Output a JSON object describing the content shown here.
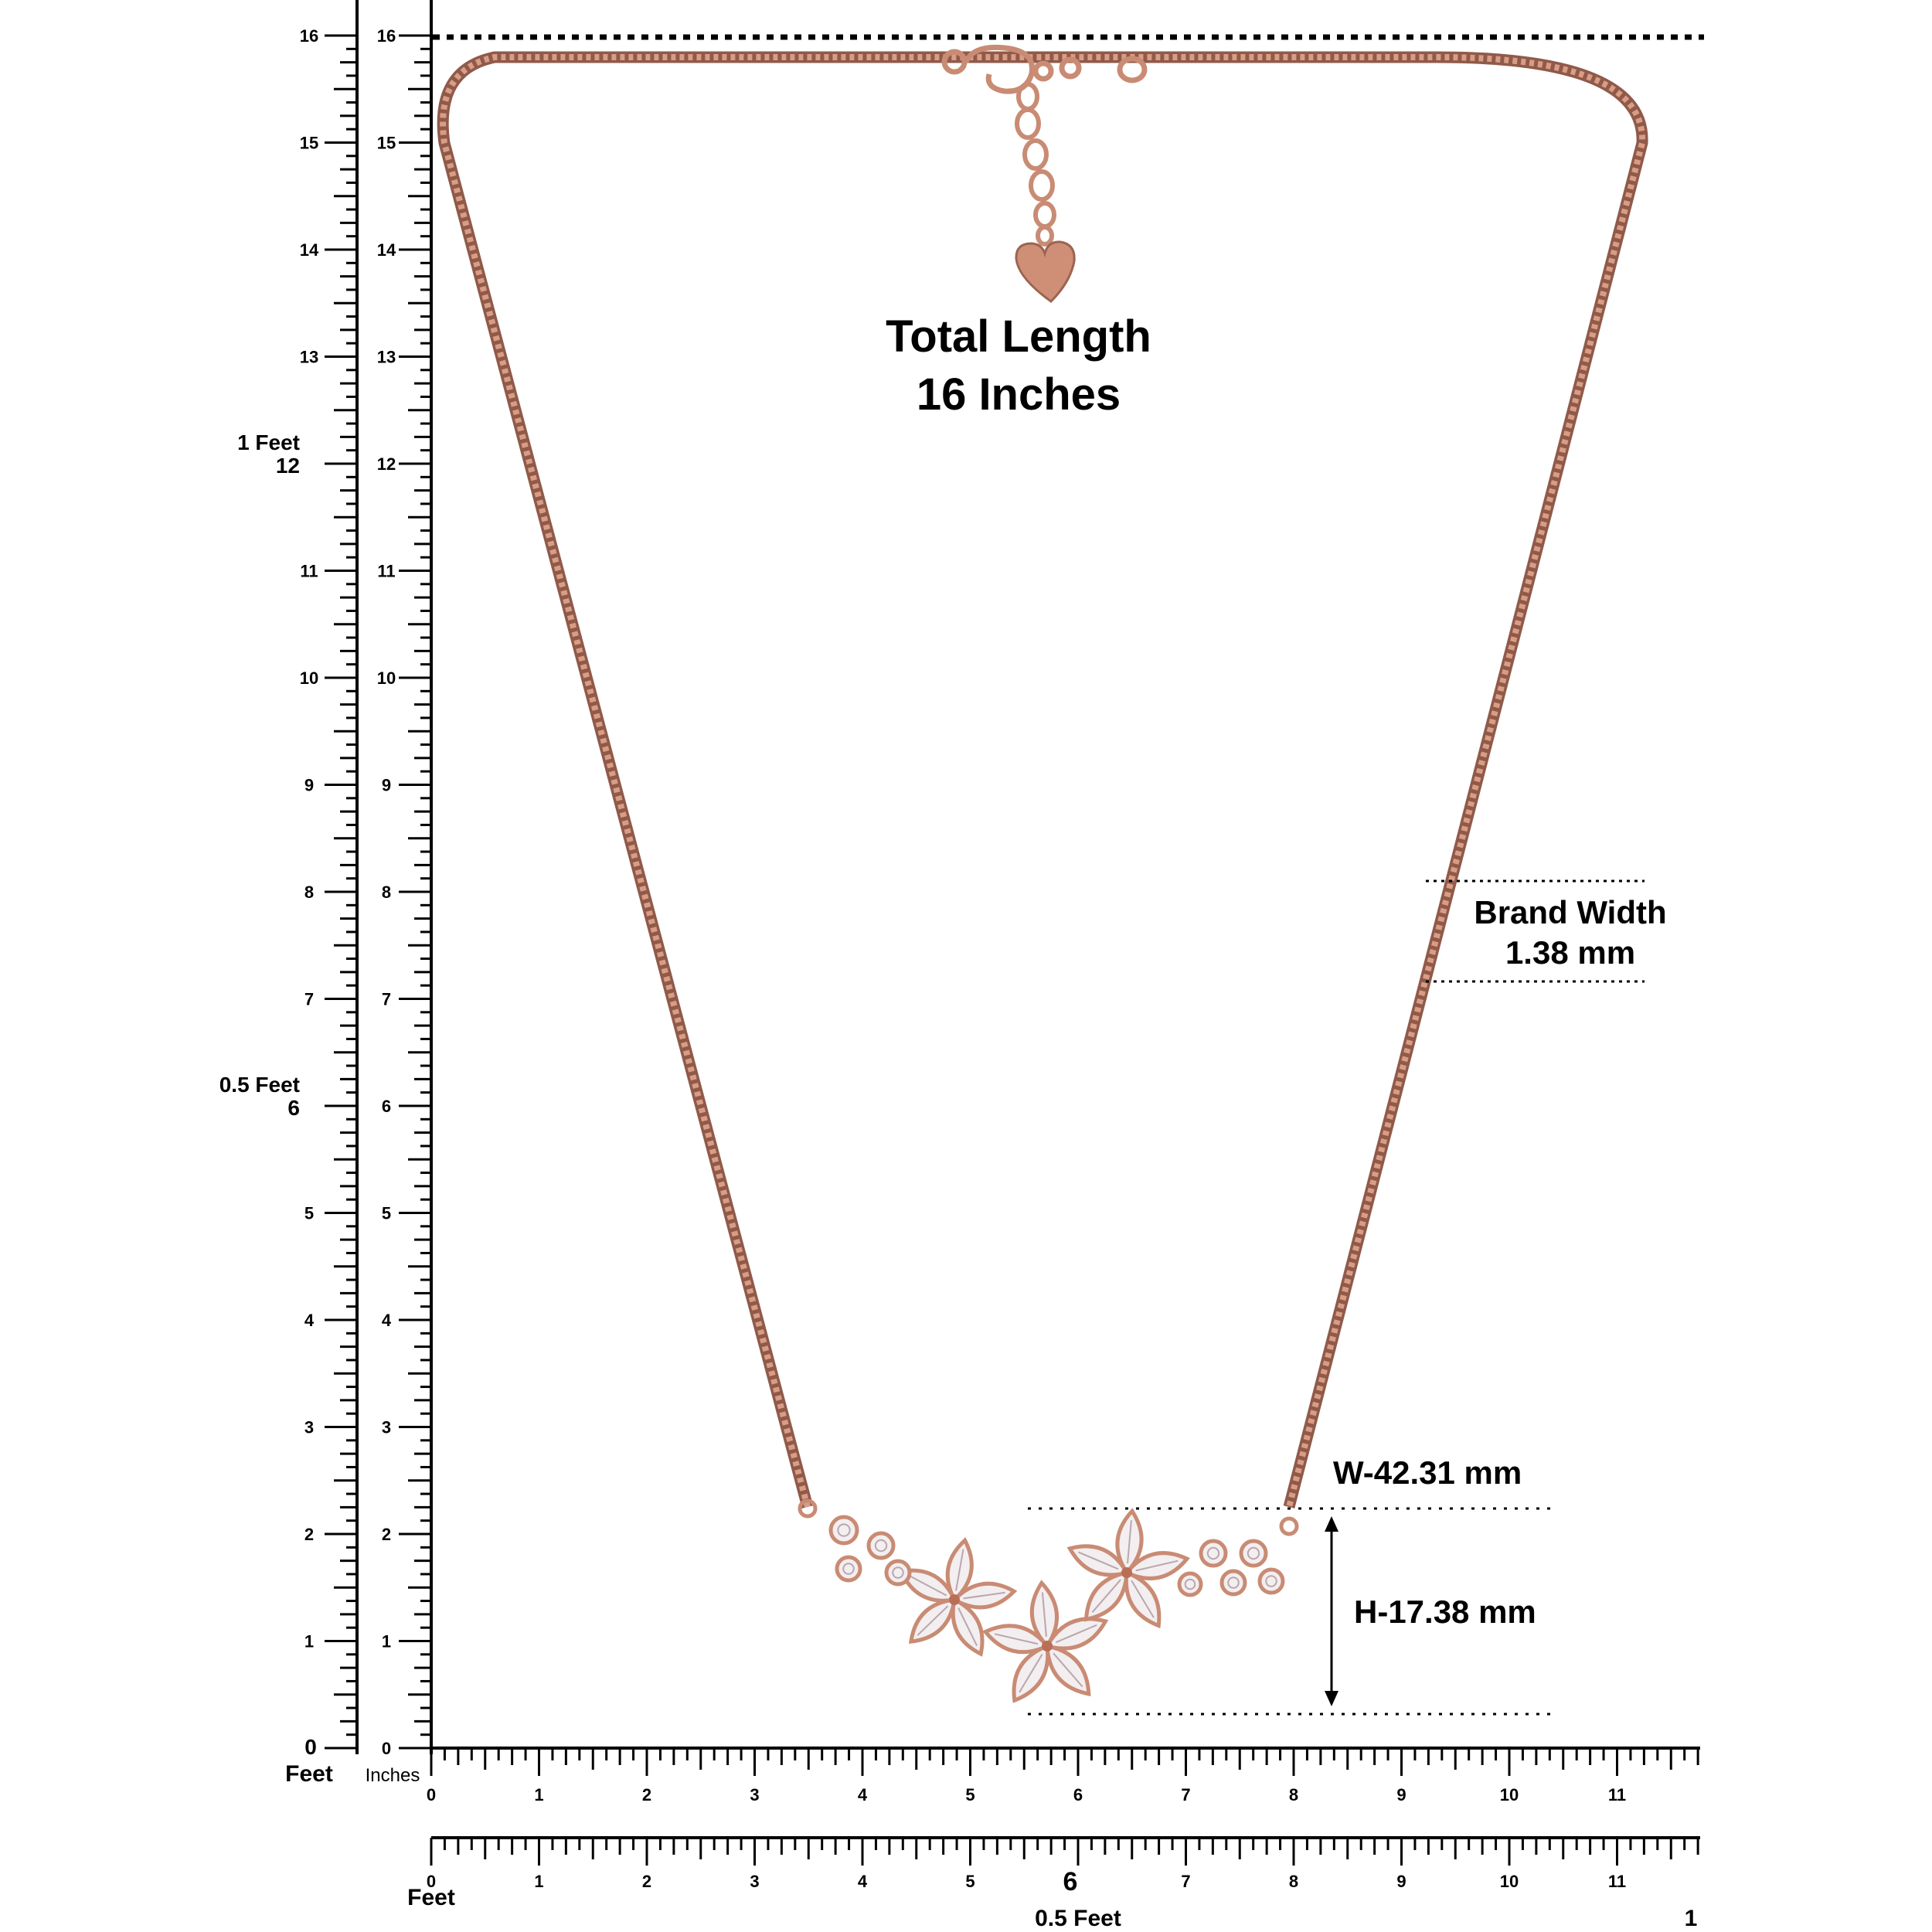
{
  "title": {
    "line1": "Total Length",
    "line2": "16 Inches"
  },
  "band_width": {
    "line1": "Brand Width",
    "line2": "1.38 mm"
  },
  "pendant": {
    "width": "W-42.31 mm",
    "height": "H-17.38 mm"
  },
  "ruler_left": {
    "inch_labels": [
      "0",
      "1",
      "2",
      "3",
      "4",
      "5",
      "6",
      "7",
      "8",
      "9",
      "10",
      "11",
      "12",
      "13",
      "14",
      "15",
      "16"
    ],
    "outer_labels": [
      "0",
      "1",
      "2",
      "3",
      "4",
      "5",
      "6",
      "7",
      "8",
      "9",
      "10",
      "11",
      "12",
      "13",
      "14",
      "15",
      "16"
    ],
    "feet_marks": [
      {
        "feet": "0.5 Feet",
        "inches": "6"
      },
      {
        "feet": "1 Feet",
        "inches": "12"
      }
    ],
    "unit_feet": "Feet",
    "unit_inches": "Inches"
  },
  "ruler_bottom": {
    "inch_labels": [
      "0",
      "1",
      "2",
      "3",
      "4",
      "5",
      "6",
      "7",
      "8",
      "9",
      "10",
      "11"
    ],
    "feet_labels": [
      "0",
      "1",
      "2",
      "3",
      "4",
      "5",
      "6",
      "7",
      "8",
      "9",
      "10",
      "11"
    ],
    "unit_feet": "Feet",
    "half_foot": "0.5 Feet",
    "half_foot_inches": "6",
    "one_foot": "1"
  },
  "colors": {
    "chain": "#c98b74",
    "chain_dark": "#8f5a4a",
    "stone": "#f3eef0",
    "stone_edge": "#b9a7ad"
  }
}
